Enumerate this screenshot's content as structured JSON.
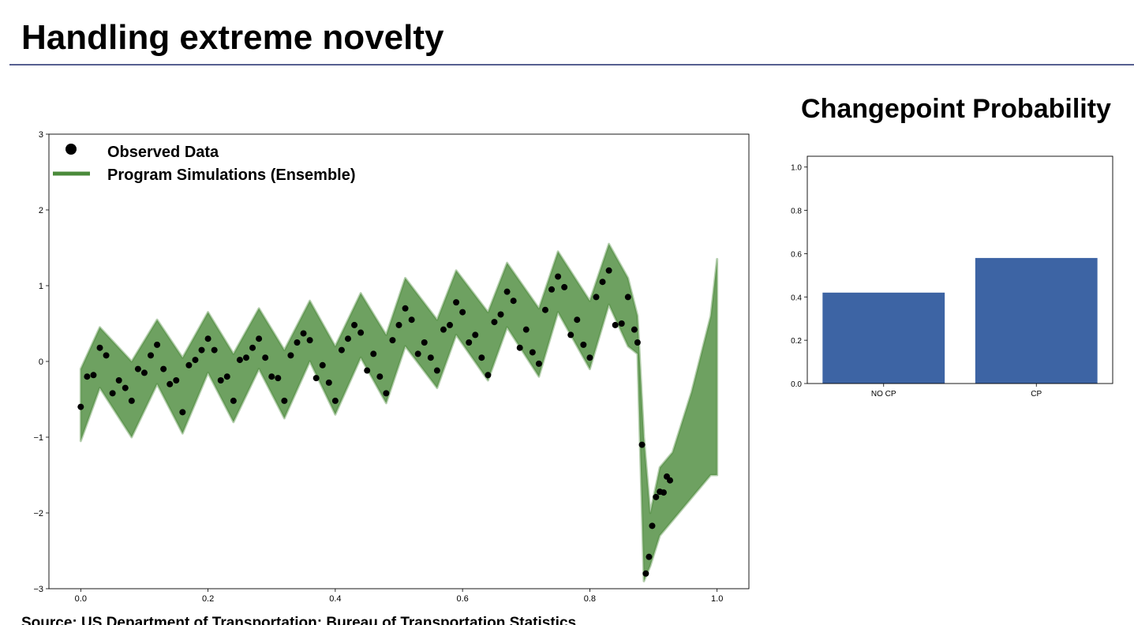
{
  "title": "Handling extreme novelty",
  "source": "Source: US Department of Transportation: Bureau of Transportation Statistics",
  "chart_data": [
    {
      "type": "scatter",
      "legend": "upper left",
      "grid": false,
      "xlim": [
        -0.05,
        1.05
      ],
      "xticks": [
        {
          "value": 0,
          "label": "0.0"
        },
        0.2,
        0.4,
        0.6,
        0.8,
        {
          "value": 1,
          "label": "1.0"
        }
      ],
      "ylim": [
        -3,
        3
      ],
      "yticks": [
        {
          "value": -3,
          "label": "−3"
        },
        {
          "value": -2,
          "label": "−2"
        },
        {
          "value": -1,
          "label": "−1"
        },
        0,
        1,
        2,
        3
      ],
      "series": [
        {
          "name": "Observed Data",
          "color": "#000000",
          "x": [
            0.0,
            0.01,
            0.02,
            0.03,
            0.04,
            0.05,
            0.06,
            0.07,
            0.08,
            0.09,
            0.1,
            0.11,
            0.12,
            0.13,
            0.14,
            0.15,
            0.16,
            0.17,
            0.18,
            0.19,
            0.2,
            0.21,
            0.22,
            0.23,
            0.24,
            0.25,
            0.26,
            0.27,
            0.28,
            0.29,
            0.3,
            0.31,
            0.32,
            0.33,
            0.34,
            0.35,
            0.36,
            0.37,
            0.38,
            0.39,
            0.4,
            0.41,
            0.42,
            0.43,
            0.44,
            0.45,
            0.46,
            0.47,
            0.48,
            0.49,
            0.5,
            0.51,
            0.52,
            0.53,
            0.54,
            0.55,
            0.56,
            0.57,
            0.58,
            0.59,
            0.6,
            0.61,
            0.62,
            0.63,
            0.64,
            0.65,
            0.66,
            0.67,
            0.68,
            0.69,
            0.7,
            0.71,
            0.72,
            0.73,
            0.74,
            0.75,
            0.76,
            0.77,
            0.78,
            0.79,
            0.8,
            0.81,
            0.82,
            0.83,
            0.84,
            0.85,
            0.86,
            0.87,
            0.875,
            0.882,
            0.888,
            0.893,
            0.898,
            0.904,
            0.91,
            0.916,
            0.921,
            0.926
          ],
          "values": [
            -0.6,
            -0.2,
            -0.18,
            0.18,
            0.08,
            -0.42,
            -0.25,
            -0.35,
            -0.52,
            -0.1,
            -0.15,
            0.08,
            0.22,
            -0.1,
            -0.3,
            -0.25,
            -0.67,
            -0.05,
            0.02,
            0.15,
            0.3,
            0.15,
            -0.25,
            -0.2,
            -0.52,
            0.02,
            0.05,
            0.18,
            0.3,
            0.05,
            -0.2,
            -0.22,
            -0.52,
            0.08,
            0.25,
            0.37,
            0.28,
            -0.22,
            -0.05,
            -0.28,
            -0.52,
            0.15,
            0.3,
            0.48,
            0.38,
            -0.12,
            0.1,
            -0.2,
            -0.42,
            0.28,
            0.48,
            0.7,
            0.55,
            0.1,
            0.25,
            0.05,
            -0.12,
            0.42,
            0.48,
            0.78,
            0.65,
            0.25,
            0.35,
            0.05,
            -0.18,
            0.52,
            0.62,
            0.92,
            0.8,
            0.18,
            0.42,
            0.12,
            -0.03,
            0.68,
            0.95,
            1.12,
            0.98,
            0.35,
            0.55,
            0.22,
            0.05,
            0.85,
            1.05,
            1.2,
            0.48,
            0.5,
            0.85,
            0.42,
            0.25,
            -1.1,
            -2.8,
            -2.58,
            -2.17,
            -1.79,
            -1.72,
            -1.73,
            -1.52,
            -1.57
          ]
        },
        {
          "name": "Program Simulations (Ensemble)",
          "color": "#4a8a3a",
          "x": [
            0.0,
            0.03,
            0.08,
            0.12,
            0.16,
            0.2,
            0.24,
            0.28,
            0.32,
            0.36,
            0.4,
            0.44,
            0.48,
            0.51,
            0.56,
            0.59,
            0.64,
            0.67,
            0.72,
            0.75,
            0.8,
            0.83,
            0.86,
            0.875,
            0.885,
            0.895,
            0.91,
            0.93,
            0.96,
            0.99,
            1.0
          ],
          "lower": [
            -1.05,
            -0.35,
            -1.0,
            -0.3,
            -0.95,
            -0.15,
            -0.8,
            -0.1,
            -0.75,
            0.0,
            -0.7,
            0.05,
            -0.55,
            0.2,
            -0.35,
            0.35,
            -0.25,
            0.45,
            -0.2,
            0.65,
            -0.1,
            0.75,
            0.2,
            0.1,
            -2.9,
            -2.7,
            -2.3,
            -2.1,
            -1.8,
            -1.5,
            -1.5
          ],
          "upper": [
            -0.1,
            0.45,
            0.0,
            0.55,
            0.05,
            0.65,
            0.1,
            0.7,
            0.15,
            0.8,
            0.2,
            0.9,
            0.35,
            1.1,
            0.55,
            1.2,
            0.65,
            1.3,
            0.7,
            1.45,
            0.8,
            1.55,
            1.1,
            0.6,
            -1.0,
            -2.0,
            -1.4,
            -1.2,
            -0.4,
            0.6,
            1.35
          ]
        }
      ]
    },
    {
      "type": "bar",
      "title": "Changepoint Probability",
      "categories": [
        "NO CP",
        "CP"
      ],
      "values": [
        0.42,
        0.58
      ],
      "color": "#3d64a4",
      "ylim": [
        0,
        1.05
      ],
      "yticks": [
        {
          "value": 0,
          "label": "0.0"
        },
        0.2,
        0.4,
        0.6,
        0.8,
        {
          "value": 1,
          "label": "1.0"
        }
      ]
    }
  ]
}
